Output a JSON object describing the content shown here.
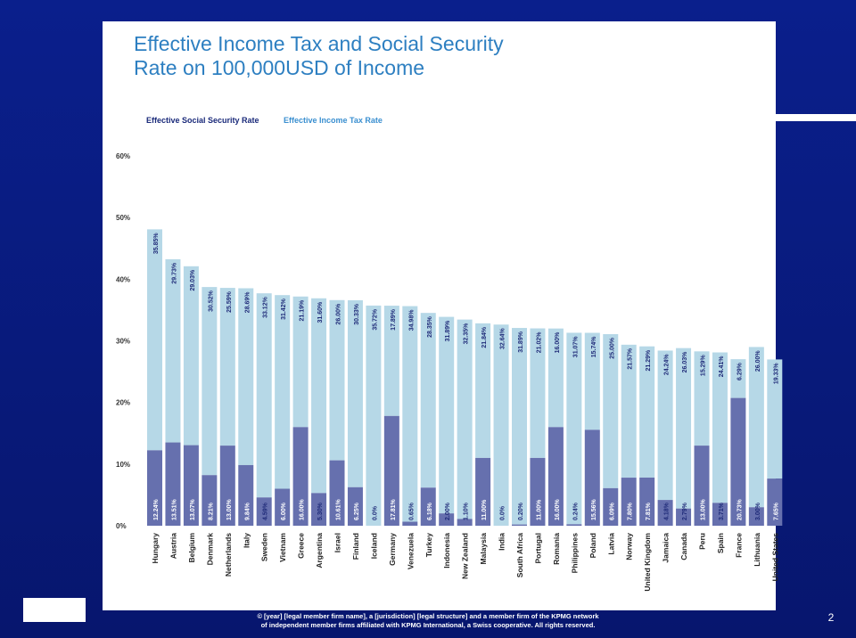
{
  "slide": {
    "footer_line1": "© [year] [legal member firm name], a [jurisdiction] [legal structure] and a member firm of the KPMG network",
    "footer_line2": "of independent member firms affiliated with KPMG International, a Swiss cooperative. All rights reserved.",
    "page_number": "2",
    "background_color": "#0a1f8c"
  },
  "chart_data": {
    "type": "bar",
    "stacked": true,
    "title": "Effective Income Tax and Social Security\nRate on 100,000USD of Income",
    "legend": [
      "Effective Social Security Rate",
      "Effective Income Tax Rate"
    ],
    "legend_placement": "top-left",
    "ylim": [
      0,
      60
    ],
    "yticks": [
      "0%",
      "10%",
      "20%",
      "30%",
      "40%",
      "50%",
      "60%"
    ],
    "colors": {
      "social_security": "#6670ae",
      "income_tax": "#b6d8e7"
    },
    "categories": [
      "Hungary",
      "Austria",
      "Belgium",
      "Denmark",
      "Netherlands",
      "Italy",
      "Sweden",
      "Vietnam",
      "Greece",
      "Argentina",
      "Israel",
      "Finland",
      "Iceland",
      "Germany",
      "Venezuela",
      "Turkey",
      "Indonesia",
      "New Zealand",
      "Malaysia",
      "India",
      "South Africa",
      "Portugal",
      "Romania",
      "Philippines",
      "Poland",
      "Latvia",
      "Norway",
      "United Kingdom",
      "Jamaica",
      "Canada",
      "Peru",
      "Spain",
      "France",
      "Lithuania",
      "United States"
    ],
    "series": [
      {
        "name": "Effective Social Security Rate",
        "values": [
          12.24,
          13.51,
          13.07,
          8.21,
          13.0,
          9.84,
          4.59,
          6.0,
          16.0,
          5.3,
          10.61,
          6.25,
          0.0,
          17.81,
          0.65,
          6.18,
          2.0,
          1.1,
          11.0,
          0.0,
          0.2,
          11.0,
          16.0,
          0.24,
          15.56,
          6.09,
          7.8,
          7.81,
          4.18,
          2.79,
          13.0,
          3.71,
          20.73,
          3.0,
          7.65
        ],
        "labels": [
          "12.24%",
          "13.51%",
          "13.07%",
          "8.21%",
          "13.00%",
          "9.84%",
          "4.59%",
          "6.00%",
          "16.00%",
          "5.30%",
          "10.61%",
          "6.25%",
          "0.0%",
          "17.81%",
          "0.65%",
          "6.18%",
          "2.00%",
          "1.10%",
          "11.00%",
          "0.0%",
          "0.20%",
          "11.00%",
          "16.00%",
          "0.24%",
          "15.56%",
          "6.09%",
          "7.80%",
          "7.81%",
          "4.18%",
          "2.79%",
          "13.00%",
          "3.71%",
          "20.73%",
          "3.00%",
          "7.65%"
        ]
      },
      {
        "name": "Effective Income Tax Rate",
        "values": [
          35.85,
          29.73,
          29.03,
          30.52,
          25.59,
          28.69,
          33.12,
          31.42,
          21.19,
          31.6,
          26.0,
          30.33,
          35.72,
          17.89,
          34.98,
          28.35,
          31.89,
          32.35,
          21.84,
          32.64,
          31.89,
          21.02,
          16.0,
          31.07,
          15.74,
          25.0,
          21.57,
          21.29,
          24.24,
          26.03,
          15.29,
          24.41,
          6.29,
          26.0,
          19.33
        ],
        "labels": [
          "35.85%",
          "29.73%",
          "29.03%",
          "30.52%",
          "25.59%",
          "28.69%",
          "33.12%",
          "31.42%",
          "21.19%",
          "31.60%",
          "26.00%",
          "30.33%",
          "35.72%",
          "17.89%",
          "34.98%",
          "28.35%",
          "31.89%",
          "32.35%",
          "21.84%",
          "32.64%",
          "31.89%",
          "21.02%",
          "16.00%",
          "31.07%",
          "15.74%",
          "25.00%",
          "21.57%",
          "21.29%",
          "24.24%",
          "26.03%",
          "15.29%",
          "24.41%",
          "6.29%",
          "26.00%",
          "19.33%"
        ]
      }
    ]
  }
}
